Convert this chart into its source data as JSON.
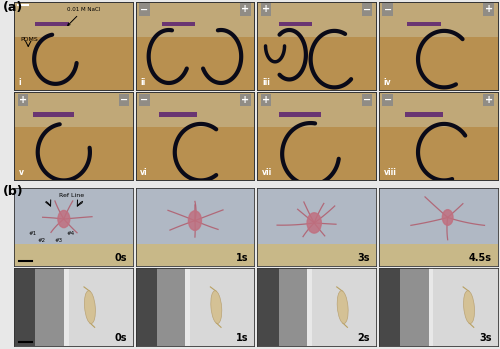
{
  "fig_width": 5.0,
  "fig_height": 3.49,
  "dpi": 100,
  "panel_a_label": "(a)",
  "panel_b_label": "(b)",
  "panel_a_row1_labels": [
    "i",
    "ii",
    "iii",
    "iv"
  ],
  "panel_a_row2_labels": [
    "v",
    "vi",
    "vii",
    "viii"
  ],
  "panel_a_row1_plus_minus": [
    [
      "",
      ""
    ],
    [
      "−",
      "+"
    ],
    [
      "+",
      "−"
    ],
    [
      "−",
      "+"
    ]
  ],
  "panel_a_row2_plus_minus": [
    [
      "+",
      "−"
    ],
    [
      "−",
      "+"
    ],
    [
      "+",
      "−"
    ],
    [
      "−",
      "+"
    ]
  ],
  "panel_b_row1_times": [
    "0s",
    "1s",
    "3s",
    "4.5s"
  ],
  "panel_b_row2_times": [
    "0s",
    "1s",
    "2s",
    "3s"
  ],
  "panel_a_annotation": "0.01 M NaCl",
  "panel_a_label1": "PDMS",
  "panel_b_refline": "Ref Line",
  "panel_b_labels": [
    "#1",
    "#2",
    "#3",
    "#4"
  ],
  "bg_top_color": "#c8a060",
  "bg_bottom_color": "#b89050",
  "bg_horizon": 0.65,
  "purple_color": "#6a3572",
  "robot_color": "#0a0a18",
  "micro_robot_body": "#c07080",
  "micro_robot_legs": "#b06070",
  "b_row1_bg": "#b8bfc8",
  "b_row1_bg_bottom": "#d4c8a0",
  "b_row2_bg_dark": "#606060",
  "b_row2_bg_light": "#d8d8d8",
  "b_row2_object": "#d4c090",
  "pm_box_color": "#888888",
  "scale_bar_color": "#ffffff",
  "text_white": "#ffffff",
  "text_black": "#000000",
  "border_color": "#333333",
  "outer_bg": "#e8e8e8"
}
